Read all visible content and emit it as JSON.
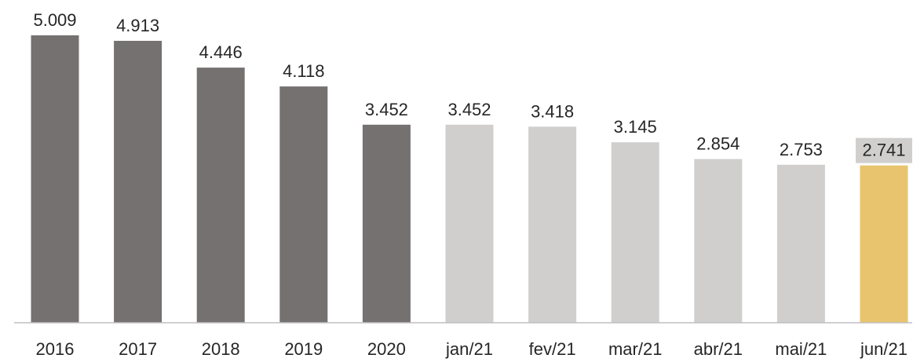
{
  "chart_data": {
    "type": "bar",
    "title": "",
    "xlabel": "",
    "ylabel": "",
    "categories": [
      "2016",
      "2017",
      "2018",
      "2019",
      "2020",
      "jan/21",
      "fev/21",
      "mar/21",
      "abr/21",
      "mai/21",
      "jun/21"
    ],
    "values": [
      5009,
      4913,
      4446,
      4118,
      3452,
      3452,
      3418,
      3145,
      2854,
      2753,
      2741
    ],
    "value_labels": [
      "5.009",
      "4.913",
      "4.446",
      "4.118",
      "3.452",
      "3.452",
      "3.418",
      "3.145",
      "2.854",
      "2.753",
      "2.741"
    ],
    "ylim": [
      0,
      5009
    ],
    "grid": false,
    "legend": "none",
    "colors": {
      "annual": "#757170",
      "monthly": "#d0cfce",
      "highlight": "#e8c46e",
      "highlight_label_bg": "#d0cfce",
      "axis": "#bfbfbf",
      "text": "#262626"
    },
    "bar_groups": [
      "annual",
      "annual",
      "annual",
      "annual",
      "annual",
      "monthly",
      "monthly",
      "monthly",
      "monthly",
      "monthly",
      "highlight"
    ]
  }
}
